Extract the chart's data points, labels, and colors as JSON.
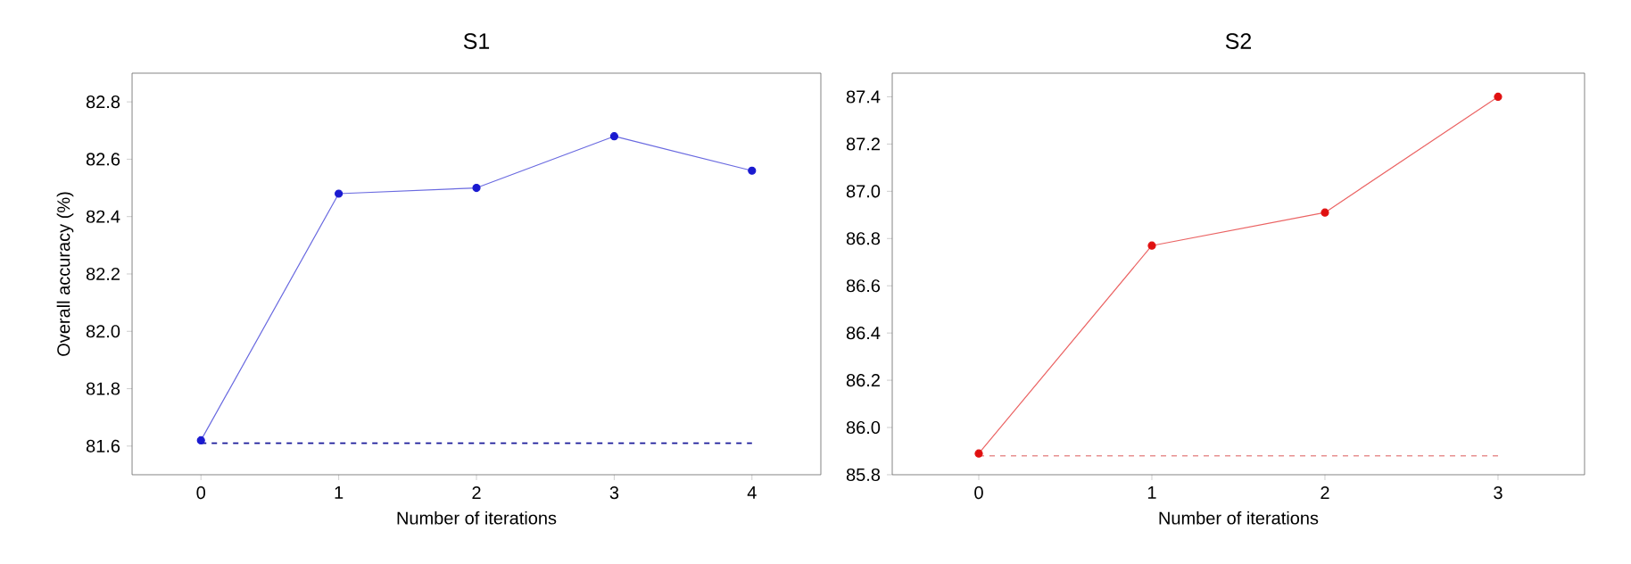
{
  "chart_data": [
    {
      "type": "line",
      "title": "S1",
      "xlabel": "Number of iterations",
      "ylabel": "Overall accuracy (%)",
      "x": [
        0,
        1,
        2,
        3,
        4
      ],
      "xlim": [
        -0.5,
        4.5
      ],
      "xticks": [
        0,
        1,
        2,
        3,
        4
      ],
      "ylim": [
        81.5,
        82.9
      ],
      "yticks": [
        81.6,
        81.8,
        {
          "value": 82.0,
          "label": "82.0"
        },
        82.2,
        82.4,
        82.6,
        82.8
      ],
      "marker": "circle",
      "series": [
        {
          "color": "#1a1ad0",
          "values": [
            81.62,
            82.48,
            82.5,
            82.68,
            82.56
          ]
        }
      ],
      "ref_lines": [
        {
          "axis": "y",
          "value": 81.61,
          "color": "#1a1a9a",
          "line_style": "dashed"
        }
      ]
    },
    {
      "type": "line",
      "title": "S2",
      "xlabel": "Number of iterations",
      "x": [
        0,
        1,
        2,
        3
      ],
      "xlim": [
        -0.5,
        3.5
      ],
      "xticks": [
        0,
        1,
        2,
        3
      ],
      "ylim": [
        85.8,
        87.5
      ],
      "yticks": [
        85.8,
        {
          "value": 86.0,
          "label": "86.0"
        },
        86.2,
        86.4,
        86.6,
        86.8,
        {
          "value": 87.0,
          "label": "87.0"
        },
        87.2,
        87.4
      ],
      "marker": "circle",
      "series": [
        {
          "color": "#e01010",
          "values": [
            85.89,
            86.77,
            86.91,
            87.4
          ]
        }
      ],
      "ref_lines": [
        {
          "axis": "y",
          "value": 85.88,
          "color": "#e89090",
          "line_style": "dashed"
        }
      ]
    }
  ]
}
